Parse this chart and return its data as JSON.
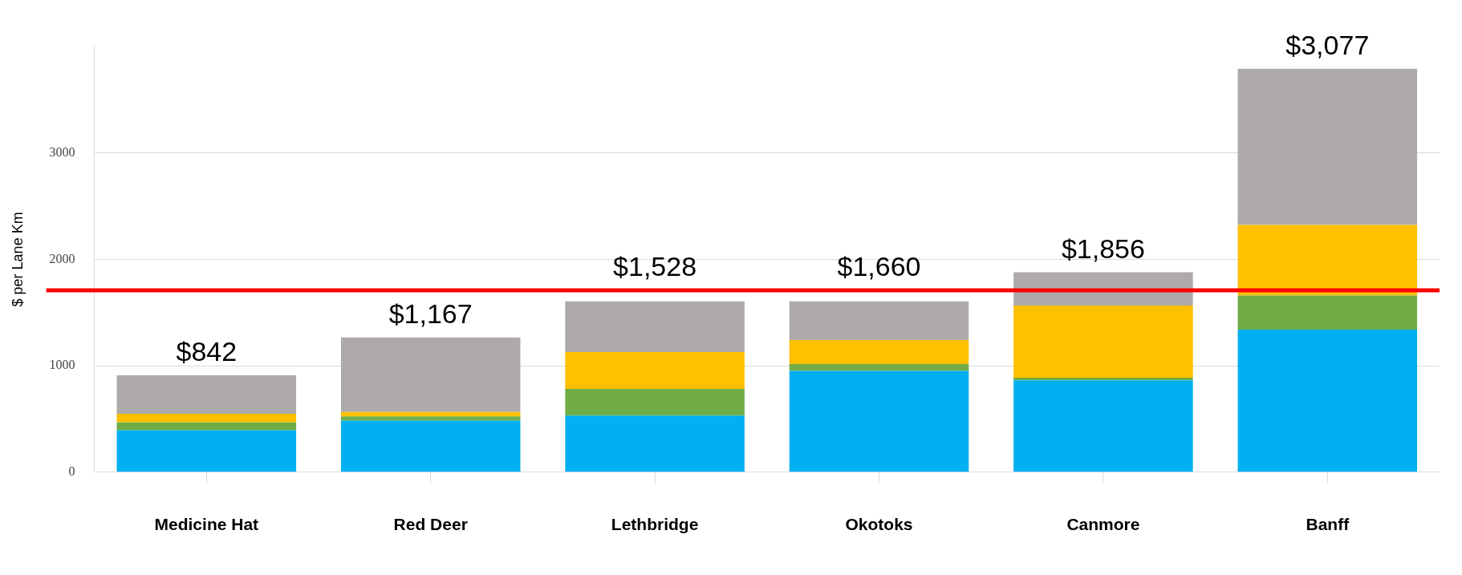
{
  "chart_data": {
    "type": "bar",
    "stacked": true,
    "ylabel": "$ per Lane Km",
    "categories": [
      "Medicine Hat",
      "Red Deer",
      "Lethbridge",
      "Okotoks",
      "Canmore",
      "Banff"
    ],
    "series": [
      {
        "color": "#00b0f0",
        "values": [
          395,
          484,
          532,
          952,
          863,
          1339
        ]
      },
      {
        "color": "#70ad47",
        "values": [
          73,
          40,
          250,
          64,
          24,
          322
        ]
      },
      {
        "color": "#ffc000",
        "values": [
          80,
          41,
          347,
          226,
          678,
          662
        ]
      },
      {
        "color": "#aeaaaa",
        "values": [
          363,
          701,
          476,
          363,
          314,
          1467
        ]
      }
    ],
    "annotations": [
      {
        "text": "$842",
        "x": "Medicine Hat",
        "y": 911
      },
      {
        "text": "$1,167",
        "x": "Red Deer",
        "y": 1266
      },
      {
        "text": "$1,528",
        "x": "Lethbridge",
        "y": 1605
      },
      {
        "text": "$1,660",
        "x": "Okotoks",
        "y": 1605
      },
      {
        "text": "$1,856",
        "x": "Canmore",
        "y": 1879
      },
      {
        "text": "$3,077",
        "x": "Banff",
        "y": 3790
      }
    ],
    "ylim": [
      0,
      4000
    ],
    "yticks": [
      0,
      1000,
      2000,
      3000
    ],
    "grid": "y",
    "legend": false,
    "ref_lines": [
      {
        "axis": "y",
        "value": 1710,
        "color": "#ff0000"
      }
    ]
  }
}
